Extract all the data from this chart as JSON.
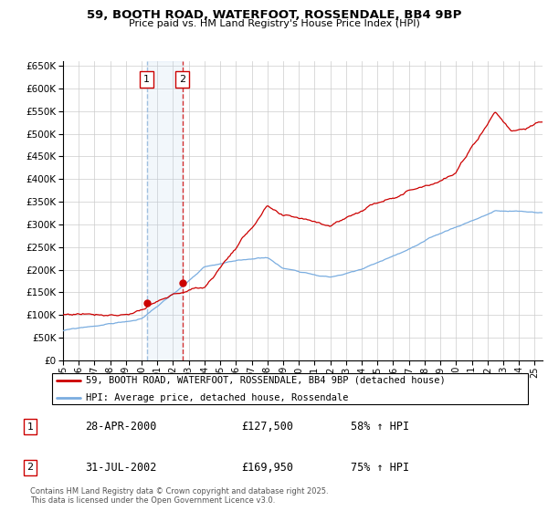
{
  "title": "59, BOOTH ROAD, WATERFOOT, ROSSENDALE, BB4 9BP",
  "subtitle": "Price paid vs. HM Land Registry's House Price Index (HPI)",
  "legend_line1": "59, BOOTH ROAD, WATERFOOT, ROSSENDALE, BB4 9BP (detached house)",
  "legend_line2": "HPI: Average price, detached house, Rossendale",
  "red_color": "#cc0000",
  "blue_color": "#7aade0",
  "purchase1_date": "28-APR-2000",
  "purchase1_price": 127500,
  "purchase1_hpi": "58% ↑ HPI",
  "purchase2_date": "31-JUL-2002",
  "purchase2_price": 169950,
  "purchase2_hpi": "75% ↑ HPI",
  "footer": "Contains HM Land Registry data © Crown copyright and database right 2025.\nThis data is licensed under the Open Government Licence v3.0.",
  "ylim_min": 0,
  "ylim_max": 650000,
  "yticks": [
    0,
    50000,
    100000,
    150000,
    200000,
    250000,
    300000,
    350000,
    400000,
    450000,
    500000,
    550000,
    600000,
    650000
  ],
  "start_year": 1995,
  "end_year": 2025
}
